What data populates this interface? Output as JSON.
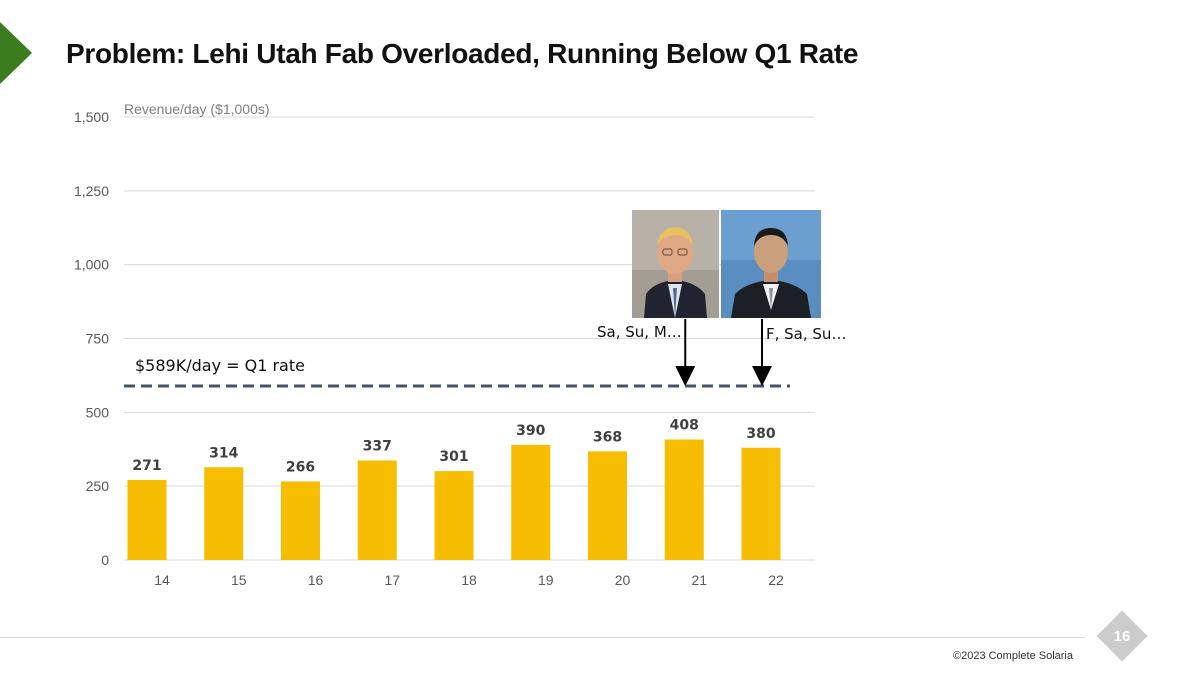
{
  "slide": {
    "title": "Problem: Lehi Utah Fab Overloaded, Running Below Q1 Rate",
    "page_number": "16",
    "copyright": "©2023 Complete Solaria",
    "accent_color": "#3b7d1e"
  },
  "annotations": {
    "q1_rate_label": "$589K/day = Q1 rate",
    "callout_left": "Sa, Su, M…",
    "callout_right": "F, Sa, Su…",
    "photo_left_icon": "person-photo-icon",
    "photo_right_icon": "person-photo-icon"
  },
  "chart_data": {
    "type": "bar",
    "title": "Revenue/day ($1,000s)",
    "xlabel": "",
    "ylabel": "Revenue/day ($1,000s)",
    "categories": [
      "14",
      "15",
      "16",
      "17",
      "18",
      "19",
      "20",
      "21",
      "22"
    ],
    "values": [
      271,
      314,
      266,
      337,
      301,
      390,
      368,
      408,
      380
    ],
    "ylim": [
      0,
      1500
    ],
    "yticks": [
      0,
      250,
      500,
      750,
      1000,
      1250,
      1500
    ],
    "ytick_labels": [
      "0",
      "250",
      "500",
      "750",
      "1,000",
      "1,250",
      "1,500"
    ],
    "reference_line": {
      "value": 589,
      "label": "$589K/day = Q1 rate",
      "style": "dashed"
    },
    "arrows": [
      {
        "x": "21"
      },
      {
        "x": "22"
      }
    ],
    "bar_color": "#f7bd00",
    "line_color": "#44546a",
    "grid": true
  }
}
